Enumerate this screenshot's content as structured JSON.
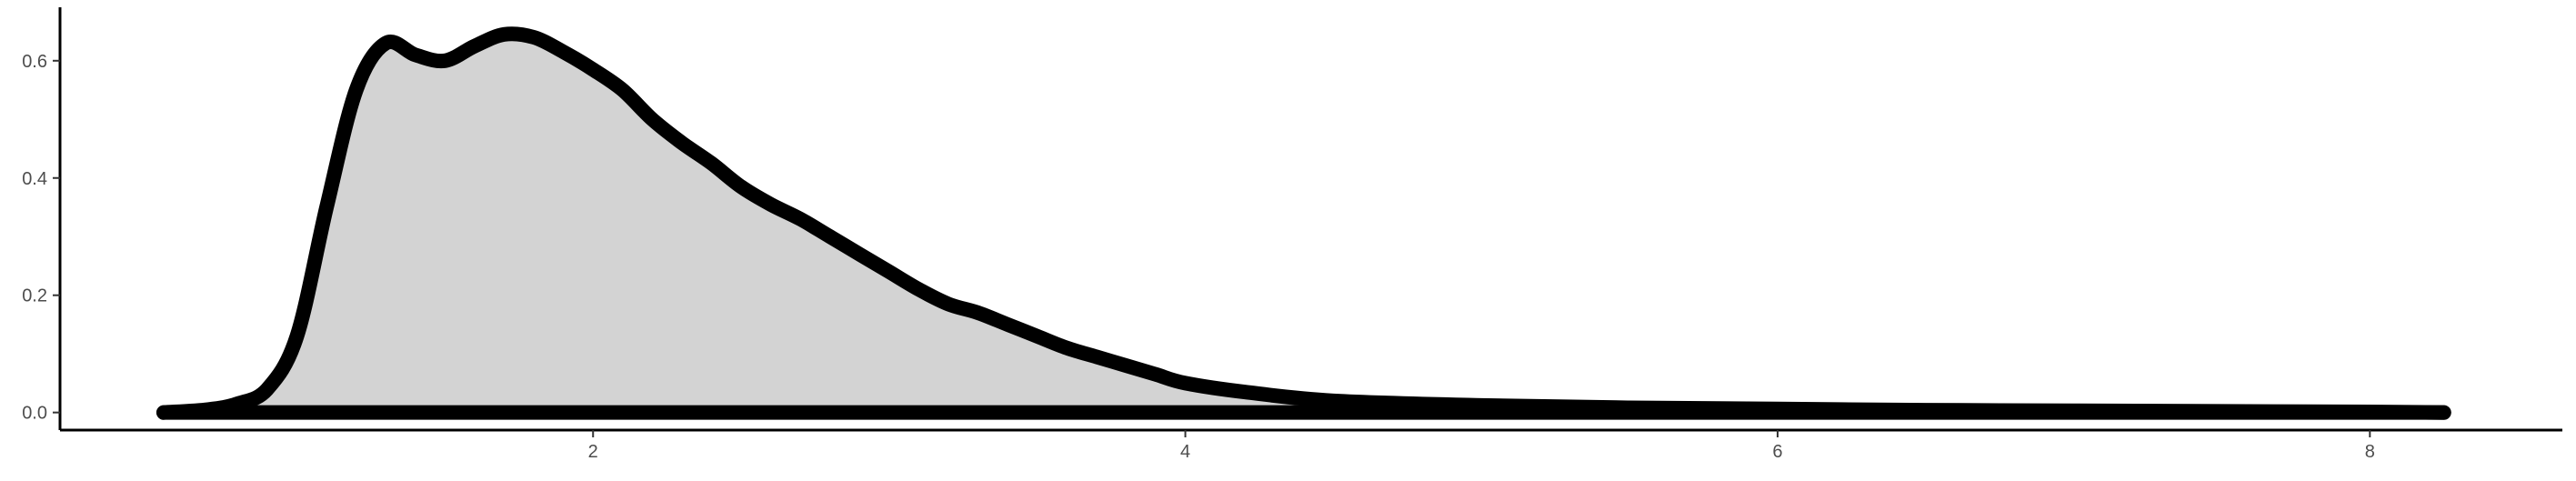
{
  "chart_data": {
    "type": "area",
    "title": "",
    "xlabel": "",
    "ylabel": "",
    "xlim": [
      0.2,
      8.65
    ],
    "ylim": [
      -0.03,
      0.685
    ],
    "x_ticks": [
      {
        "value": 2,
        "label": "2"
      },
      {
        "value": 4,
        "label": "4"
      },
      {
        "value": 6,
        "label": "6"
      },
      {
        "value": 8,
        "label": "8"
      }
    ],
    "y_ticks": [
      {
        "value": 0.0,
        "label": "0.0"
      },
      {
        "value": 0.2,
        "label": "0.2"
      },
      {
        "value": 0.4,
        "label": "0.4"
      },
      {
        "value": 0.6,
        "label": "0.6"
      }
    ],
    "grid": false,
    "legend": "none",
    "fill_color": "#d3d3d3",
    "line_color": "#000000",
    "series": [
      {
        "x": [
          0.55,
          0.7,
          0.8,
          0.9,
          1.0,
          1.1,
          1.2,
          1.3,
          1.4,
          1.5,
          1.6,
          1.7,
          1.8,
          1.9,
          2.0,
          2.1,
          2.2,
          2.3,
          2.4,
          2.5,
          2.6,
          2.7,
          2.8,
          2.9,
          3.0,
          3.1,
          3.2,
          3.3,
          3.4,
          3.5,
          3.6,
          3.7,
          3.8,
          3.9,
          4.0,
          4.2,
          4.5,
          5.0,
          5.5,
          6.0,
          6.5,
          7.0,
          7.5,
          8.0,
          8.25
        ],
        "y": [
          0.0,
          0.005,
          0.015,
          0.04,
          0.13,
          0.35,
          0.55,
          0.63,
          0.61,
          0.6,
          0.625,
          0.645,
          0.64,
          0.615,
          0.585,
          0.55,
          0.5,
          0.46,
          0.425,
          0.385,
          0.355,
          0.33,
          0.3,
          0.27,
          0.24,
          0.21,
          0.185,
          0.17,
          0.15,
          0.13,
          0.11,
          0.095,
          0.08,
          0.065,
          0.05,
          0.035,
          0.02,
          0.012,
          0.008,
          0.006,
          0.004,
          0.003,
          0.002,
          0.001,
          0.0
        ]
      }
    ]
  }
}
